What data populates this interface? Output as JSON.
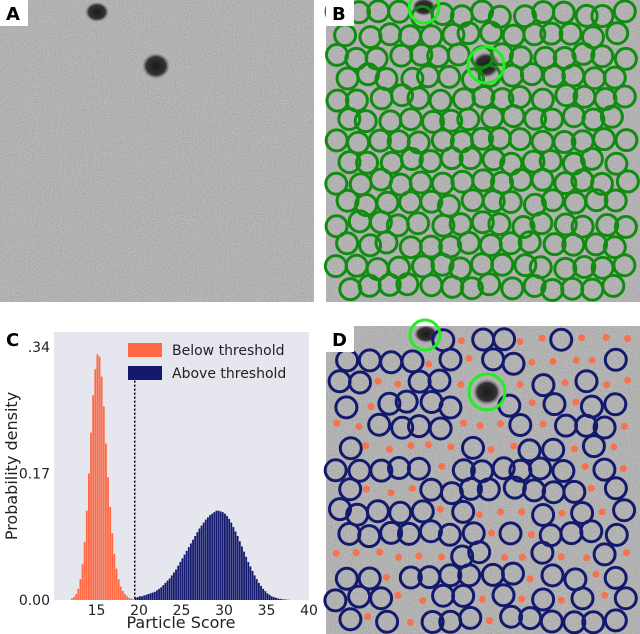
{
  "panels": {
    "a": {
      "label": "A"
    },
    "b": {
      "label": "B"
    },
    "c": {
      "label": "C"
    },
    "d": {
      "label": "D"
    }
  },
  "colors": {
    "micrograph_background": "#a6a6a6",
    "particle_pick": "#118c11",
    "contaminant_pick": "#22ee22",
    "above_threshold": "#131a6e",
    "below_threshold": "#ff6a45",
    "plot_background": "#e6e6ee",
    "threshold_line": "#000000"
  },
  "micrograph_b": {
    "description_icon": "particle-circle-icon",
    "particle_pick_count_shown": 220
  },
  "micrograph_d": {
    "description_icon": "particle-circle-icon",
    "above_threshold_circles": 130,
    "below_threshold_dots": 150
  },
  "chart_data": {
    "type": "bar",
    "title": "",
    "xlabel": "Particle Score",
    "ylabel": "Probability density",
    "xlim": [
      10,
      40
    ],
    "ylim": [
      0,
      0.36
    ],
    "xticks": [
      15,
      20,
      25,
      30,
      35,
      40
    ],
    "yticks": [
      "0.00",
      "0.17",
      "0.34"
    ],
    "ytick_values": [
      0,
      0.17,
      0.34
    ],
    "grid": false,
    "legend_position": "top-right",
    "threshold": 19.5,
    "bin_width": 0.25,
    "series": [
      {
        "name": "Below threshold",
        "color": "#ff6a45",
        "x": [
          12.0,
          12.25,
          12.5,
          12.75,
          13.0,
          13.25,
          13.5,
          13.75,
          14.0,
          14.25,
          14.5,
          14.75,
          15.0,
          15.25,
          15.5,
          15.75,
          16.0,
          16.25,
          16.5,
          16.75,
          17.0,
          17.25,
          17.5,
          17.75,
          18.0,
          18.25,
          18.5,
          18.75,
          19.0,
          19.25
        ],
        "values": [
          0.002,
          0.004,
          0.008,
          0.015,
          0.028,
          0.048,
          0.078,
          0.12,
          0.17,
          0.225,
          0.275,
          0.31,
          0.33,
          0.327,
          0.3,
          0.26,
          0.21,
          0.165,
          0.125,
          0.09,
          0.062,
          0.042,
          0.028,
          0.018,
          0.012,
          0.008,
          0.005,
          0.003,
          0.002,
          0.001
        ]
      },
      {
        "name": "Above threshold",
        "color": "#131a6e",
        "x": [
          19.5,
          19.75,
          20.0,
          20.25,
          20.5,
          20.75,
          21.0,
          21.25,
          21.5,
          21.75,
          22.0,
          22.25,
          22.5,
          22.75,
          23.0,
          23.25,
          23.5,
          23.75,
          24.0,
          24.25,
          24.5,
          24.75,
          25.0,
          25.25,
          25.5,
          25.75,
          26.0,
          26.25,
          26.5,
          26.75,
          27.0,
          27.25,
          27.5,
          27.75,
          28.0,
          28.25,
          28.5,
          28.75,
          29.0,
          29.25,
          29.5,
          29.75,
          30.0,
          30.25,
          30.5,
          30.75,
          31.0,
          31.25,
          31.5,
          31.75,
          32.0,
          32.25,
          32.5,
          32.75,
          33.0,
          33.25,
          33.5,
          33.75,
          34.0,
          34.25,
          34.5,
          34.75,
          35.0,
          35.25,
          35.5,
          35.75,
          36.0,
          36.25,
          36.5,
          36.75,
          37.0,
          37.25,
          37.5
        ],
        "values": [
          0.003,
          0.004,
          0.005,
          0.005,
          0.006,
          0.007,
          0.008,
          0.009,
          0.01,
          0.011,
          0.013,
          0.015,
          0.017,
          0.02,
          0.023,
          0.026,
          0.029,
          0.033,
          0.037,
          0.041,
          0.046,
          0.051,
          0.056,
          0.061,
          0.066,
          0.071,
          0.076,
          0.081,
          0.086,
          0.091,
          0.096,
          0.1,
          0.104,
          0.108,
          0.111,
          0.114,
          0.116,
          0.118,
          0.12,
          0.12,
          0.119,
          0.118,
          0.116,
          0.113,
          0.109,
          0.104,
          0.098,
          0.092,
          0.086,
          0.079,
          0.072,
          0.065,
          0.058,
          0.051,
          0.045,
          0.039,
          0.033,
          0.028,
          0.023,
          0.019,
          0.015,
          0.012,
          0.009,
          0.007,
          0.005,
          0.004,
          0.003,
          0.002,
          0.0015,
          0.001,
          0.0008,
          0.0005,
          0.0003
        ]
      }
    ]
  }
}
